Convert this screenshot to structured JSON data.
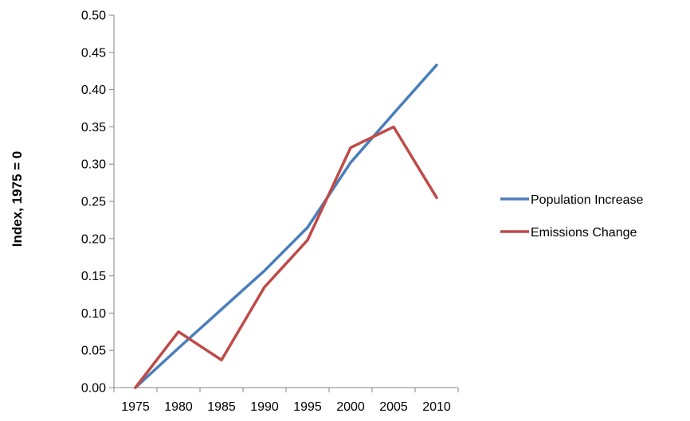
{
  "chart_data": {
    "type": "line",
    "title": "",
    "xlabel": "",
    "ylabel": "Index, 1975 = 0",
    "x_ticks": [
      "1975",
      "1980",
      "1985",
      "1990",
      "1995",
      "2000",
      "2005",
      "2010"
    ],
    "y_ticks": [
      "0.00",
      "0.05",
      "0.10",
      "0.15",
      "0.20",
      "0.25",
      "0.30",
      "0.35",
      "0.40",
      "0.45",
      "0.50"
    ],
    "ylim": [
      0,
      0.5
    ],
    "xlim": [
      1972.5,
      2012.5
    ],
    "grid": false,
    "legend_position": "right",
    "series": [
      {
        "name": "Population Increase",
        "color": "#4a7ebb",
        "x": [
          1975,
          1980,
          1985,
          1990,
          1995,
          2000,
          2005,
          2010
        ],
        "values": [
          0.0,
          0.053,
          0.105,
          0.157,
          0.215,
          0.302,
          0.368,
          0.433
        ]
      },
      {
        "name": "Emissions Change",
        "color": "#be4b48",
        "x": [
          1975,
          1980,
          1985,
          1990,
          1995,
          2000,
          2005,
          2010
        ],
        "values": [
          0.0,
          0.075,
          0.037,
          0.135,
          0.198,
          0.322,
          0.35,
          0.255
        ]
      }
    ]
  }
}
